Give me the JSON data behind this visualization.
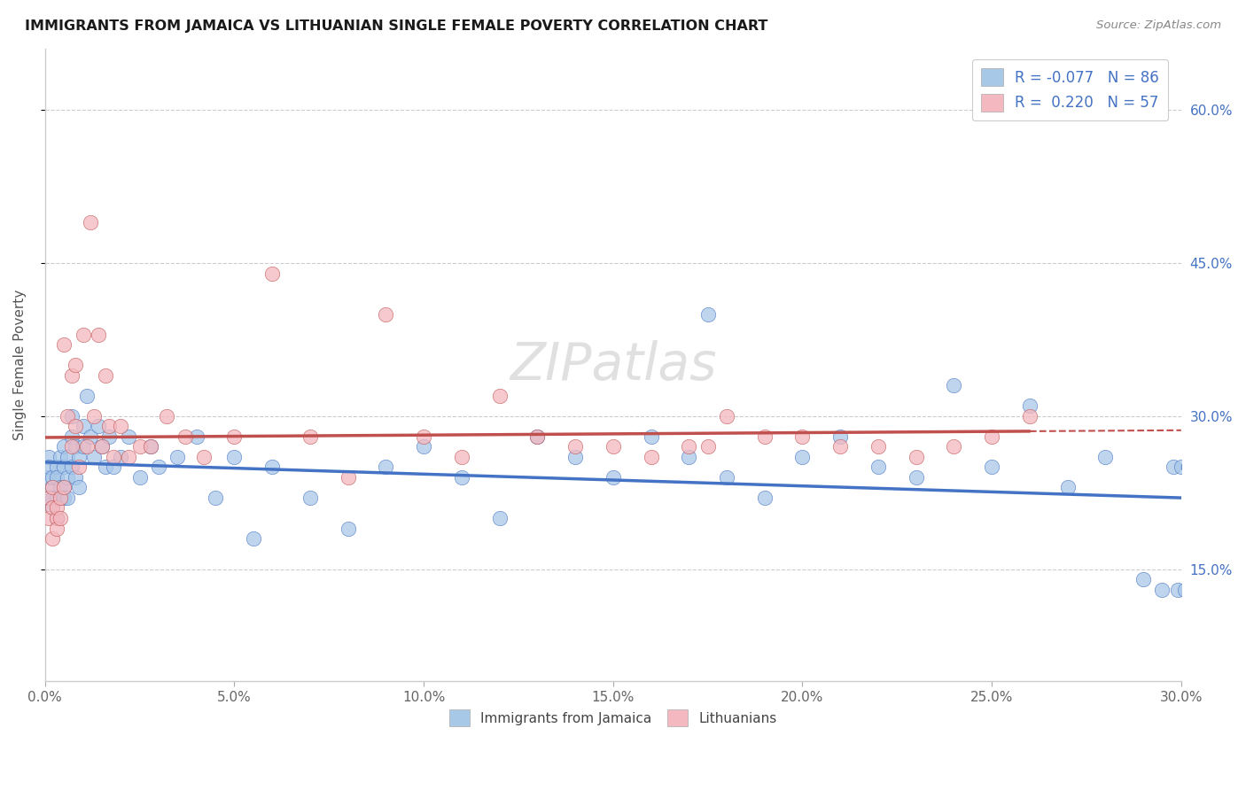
{
  "title": "IMMIGRANTS FROM JAMAICA VS LITHUANIAN SINGLE FEMALE POVERTY CORRELATION CHART",
  "source": "Source: ZipAtlas.com",
  "ylabel": "Single Female Poverty",
  "legend_label1": "Immigrants from Jamaica",
  "legend_label2": "Lithuanians",
  "r1": "-0.077",
  "n1": "86",
  "r2": "0.220",
  "n2": "57",
  "color1": "#a8c8e8",
  "color2": "#f4b8c0",
  "trendline1_color": "#4472c4",
  "trendline2_color": "#c0504d",
  "watermark": "ZIPatlas",
  "ytick_labels": [
    "15.0%",
    "30.0%",
    "45.0%",
    "60.0%"
  ],
  "ytick_values": [
    0.15,
    0.3,
    0.45,
    0.6
  ],
  "xlim": [
    0.0,
    0.3
  ],
  "ylim": [
    0.04,
    0.66
  ],
  "jamaica_x": [
    0.001,
    0.001,
    0.001,
    0.001,
    0.002,
    0.002,
    0.002,
    0.002,
    0.003,
    0.003,
    0.003,
    0.003,
    0.004,
    0.004,
    0.004,
    0.005,
    0.005,
    0.005,
    0.005,
    0.006,
    0.006,
    0.006,
    0.007,
    0.007,
    0.007,
    0.008,
    0.008,
    0.009,
    0.009,
    0.01,
    0.01,
    0.011,
    0.012,
    0.013,
    0.014,
    0.015,
    0.016,
    0.017,
    0.018,
    0.02,
    0.022,
    0.025,
    0.028,
    0.03,
    0.035,
    0.04,
    0.045,
    0.05,
    0.055,
    0.06,
    0.07,
    0.08,
    0.09,
    0.1,
    0.11,
    0.12,
    0.13,
    0.14,
    0.15,
    0.16,
    0.17,
    0.175,
    0.18,
    0.19,
    0.2,
    0.21,
    0.22,
    0.23,
    0.24,
    0.25,
    0.26,
    0.27,
    0.28,
    0.29,
    0.295,
    0.298,
    0.299,
    0.3,
    0.301,
    0.302,
    0.302,
    0.303,
    0.305,
    0.305,
    0.306,
    0.307
  ],
  "jamaica_y": [
    0.24,
    0.22,
    0.26,
    0.25,
    0.23,
    0.22,
    0.21,
    0.24,
    0.2,
    0.22,
    0.25,
    0.24,
    0.23,
    0.26,
    0.22,
    0.27,
    0.25,
    0.23,
    0.22,
    0.26,
    0.24,
    0.22,
    0.28,
    0.25,
    0.3,
    0.27,
    0.24,
    0.26,
    0.23,
    0.29,
    0.27,
    0.32,
    0.28,
    0.26,
    0.29,
    0.27,
    0.25,
    0.28,
    0.25,
    0.26,
    0.28,
    0.24,
    0.27,
    0.25,
    0.26,
    0.28,
    0.22,
    0.26,
    0.18,
    0.25,
    0.22,
    0.19,
    0.25,
    0.27,
    0.24,
    0.2,
    0.28,
    0.26,
    0.24,
    0.28,
    0.26,
    0.4,
    0.24,
    0.22,
    0.26,
    0.28,
    0.25,
    0.24,
    0.33,
    0.25,
    0.31,
    0.23,
    0.26,
    0.14,
    0.13,
    0.25,
    0.13,
    0.25,
    0.13,
    0.25,
    0.25,
    0.25,
    0.13,
    0.25,
    0.13,
    0.14
  ],
  "lithuanian_x": [
    0.001,
    0.001,
    0.002,
    0.002,
    0.002,
    0.003,
    0.003,
    0.003,
    0.004,
    0.004,
    0.005,
    0.005,
    0.006,
    0.007,
    0.007,
    0.008,
    0.008,
    0.009,
    0.01,
    0.011,
    0.012,
    0.013,
    0.014,
    0.015,
    0.016,
    0.017,
    0.018,
    0.02,
    0.022,
    0.025,
    0.028,
    0.032,
    0.037,
    0.042,
    0.05,
    0.06,
    0.07,
    0.08,
    0.09,
    0.1,
    0.11,
    0.12,
    0.13,
    0.14,
    0.15,
    0.16,
    0.17,
    0.175,
    0.18,
    0.19,
    0.2,
    0.21,
    0.22,
    0.23,
    0.24,
    0.25,
    0.26
  ],
  "lithuanian_y": [
    0.22,
    0.2,
    0.21,
    0.18,
    0.23,
    0.2,
    0.21,
    0.19,
    0.22,
    0.2,
    0.37,
    0.23,
    0.3,
    0.34,
    0.27,
    0.35,
    0.29,
    0.25,
    0.38,
    0.27,
    0.49,
    0.3,
    0.38,
    0.27,
    0.34,
    0.29,
    0.26,
    0.29,
    0.26,
    0.27,
    0.27,
    0.3,
    0.28,
    0.26,
    0.28,
    0.44,
    0.28,
    0.24,
    0.4,
    0.28,
    0.26,
    0.32,
    0.28,
    0.27,
    0.27,
    0.26,
    0.27,
    0.27,
    0.3,
    0.28,
    0.28,
    0.27,
    0.27,
    0.26,
    0.27,
    0.28,
    0.3
  ]
}
